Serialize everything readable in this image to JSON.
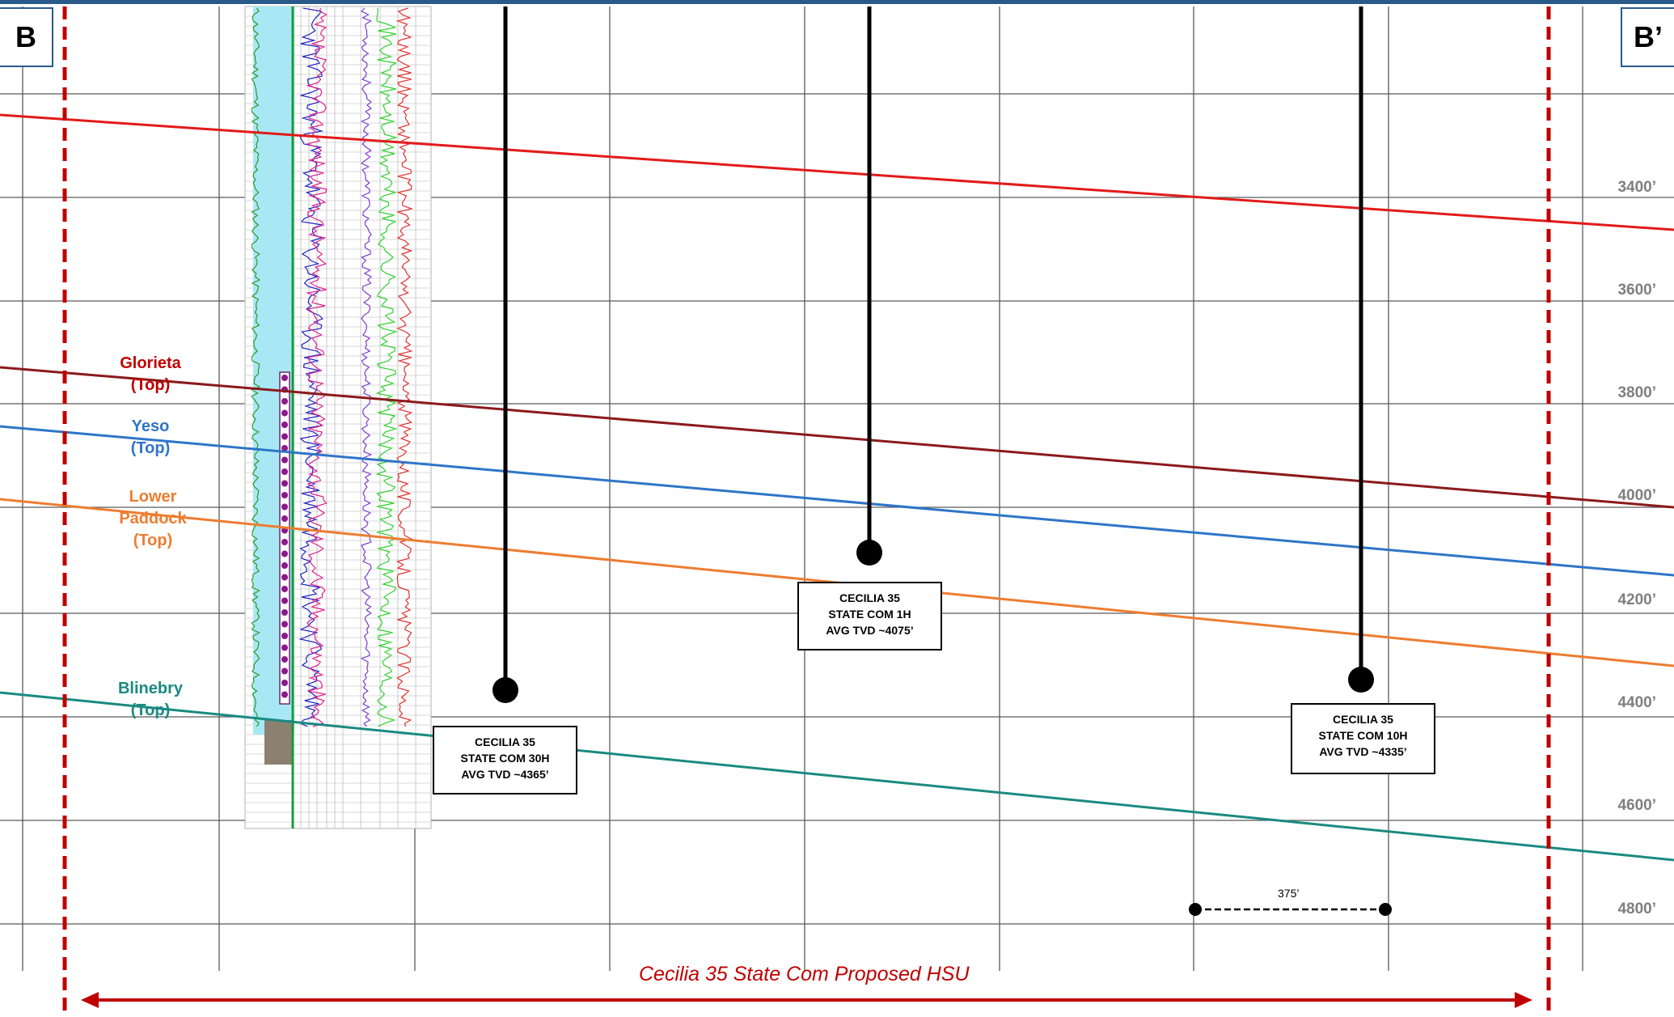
{
  "corners": {
    "left": "B",
    "right": "B’"
  },
  "formations": [
    {
      "name": "Glorieta",
      "suffix": "(Top)",
      "color": "#8b1a1a"
    },
    {
      "name": "Yeso",
      "suffix": "(Top)",
      "color": "#2e75c8"
    },
    {
      "name": "Lower Paddock",
      "suffix": "(Top)",
      "color": "#ed7d31"
    },
    {
      "name": "Blinebry",
      "suffix": "(Top)",
      "color": "#1a8a82"
    }
  ],
  "reference_horizon_color": "#e31a1a",
  "depth_labels": [
    "3400’",
    "3600’",
    "3800’",
    "4000’",
    "4200’",
    "4400’",
    "4600’",
    "4800’"
  ],
  "wells": [
    {
      "line1": "CECILIA 35",
      "line2": "STATE COM 30H",
      "line3": "AVG TVD ~4365’"
    },
    {
      "line1": "CECILIA 35",
      "line2": "STATE COM 1H",
      "line3": "AVG TVD ~4075’"
    },
    {
      "line1": "CECILIA 35",
      "line2": "STATE COM 10H",
      "line3": "AVG TVD ~4335’"
    }
  ],
  "scale_bar": {
    "label": "375’"
  },
  "hsu": {
    "label": "Cecilia 35 State Com Proposed HSU",
    "color": "#c00000"
  },
  "colors": {
    "border": "#2a5a8a",
    "grid": "#5a5a5a",
    "hsu_boundary": "#c00000"
  }
}
